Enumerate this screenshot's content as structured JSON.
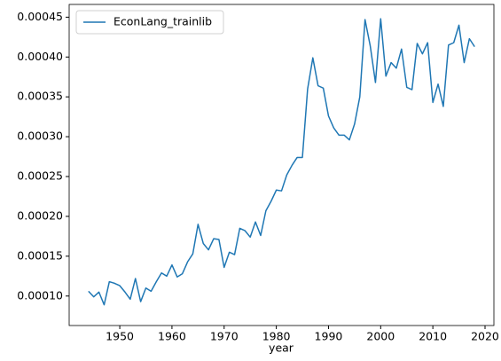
{
  "chart_data": {
    "type": "line",
    "xlabel": "year",
    "x": [
      1944,
      1945,
      1946,
      1947,
      1948,
      1949,
      1950,
      1951,
      1952,
      1953,
      1954,
      1955,
      1956,
      1957,
      1958,
      1959,
      1960,
      1961,
      1962,
      1963,
      1964,
      1965,
      1966,
      1967,
      1968,
      1969,
      1970,
      1971,
      1972,
      1973,
      1974,
      1975,
      1976,
      1977,
      1978,
      1979,
      1980,
      1981,
      1982,
      1983,
      1984,
      1985,
      1986,
      1987,
      1988,
      1989,
      1990,
      1991,
      1992,
      1993,
      1994,
      1995,
      1996,
      1997,
      1998,
      1999,
      2000,
      2001,
      2002,
      2003,
      2004,
      2005,
      2006,
      2007,
      2008,
      2009,
      2010,
      2011,
      2012,
      2013,
      2014,
      2015,
      2016,
      2017,
      2018
    ],
    "series": [
      {
        "name": "EconLang_trainlib",
        "color": "#1f77b4",
        "values": [
          0.000106,
          9.9e-05,
          0.000105,
          8.9e-05,
          0.000118,
          0.000116,
          0.000113,
          0.000105,
          9.6e-05,
          0.000122,
          9.3e-05,
          0.00011,
          0.000106,
          0.000118,
          0.000129,
          0.000125,
          0.000139,
          0.000124,
          0.000128,
          0.000143,
          0.000153,
          0.00019,
          0.000166,
          0.000158,
          0.000172,
          0.000171,
          0.000136,
          0.000155,
          0.000152,
          0.000185,
          0.000182,
          0.000174,
          0.000193,
          0.000176,
          0.000207,
          0.000219,
          0.000233,
          0.000232,
          0.000252,
          0.000264,
          0.000274,
          0.000274,
          0.00036,
          0.000399,
          0.000364,
          0.000361,
          0.000326,
          0.000311,
          0.000302,
          0.000302,
          0.000296,
          0.000316,
          0.00035,
          0.000447,
          0.000414,
          0.000368,
          0.000448,
          0.000376,
          0.000393,
          0.000386,
          0.00041,
          0.000362,
          0.000359,
          0.000417,
          0.000404,
          0.000418,
          0.000343,
          0.000366,
          0.000338,
          0.000415,
          0.000418,
          0.00044,
          0.000393,
          0.000423,
          0.000413
        ]
      }
    ],
    "xlim": [
      1940.3,
      2021.7
    ],
    "xticks": [
      1950,
      1960,
      1970,
      1980,
      1990,
      2000,
      2010,
      2020
    ],
    "ylim": [
      6.3e-05,
      0.000466
    ],
    "yticks": [
      {
        "value": 0.0001,
        "label": "0.00010"
      },
      {
        "value": 0.00015,
        "label": "0.00015"
      },
      {
        "value": 0.0002,
        "label": "0.00020"
      },
      {
        "value": 0.00025,
        "label": "0.00025"
      },
      {
        "value": 0.0003,
        "label": "0.00030"
      },
      {
        "value": 0.00035,
        "label": "0.00035"
      },
      {
        "value": 0.0004,
        "label": "0.00040"
      },
      {
        "value": 0.00045,
        "label": "0.00045"
      }
    ],
    "legend": "upper left",
    "grid": false
  }
}
